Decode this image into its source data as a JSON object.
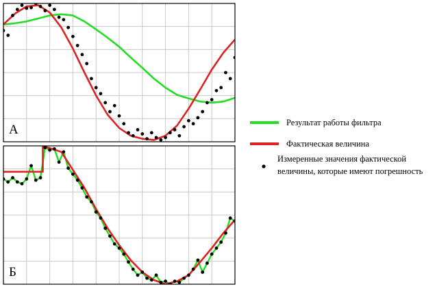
{
  "chart_data": [
    {
      "type": "line",
      "panel_label": "А",
      "grid": true,
      "xlim": [
        0,
        100
      ],
      "ylim": [
        -1.15,
        1.15
      ],
      "series": [
        {
          "name": "Результат работы фильтра",
          "color": "#22dd22",
          "x": [
            0,
            5,
            10,
            15,
            20,
            25,
            30,
            35,
            40,
            45,
            50,
            55,
            60,
            65,
            70,
            75,
            80,
            85,
            90,
            95,
            100
          ],
          "y": [
            0.8,
            0.82,
            0.85,
            0.9,
            0.95,
            0.97,
            0.95,
            0.85,
            0.72,
            0.58,
            0.43,
            0.25,
            0.08,
            -0.1,
            -0.25,
            -0.37,
            -0.43,
            -0.48,
            -0.5,
            -0.48,
            -0.42
          ]
        },
        {
          "name": "Фактическая величина",
          "color": "#dd2222",
          "x": [
            0,
            5,
            10,
            15,
            20,
            25,
            30,
            35,
            40,
            45,
            50,
            55,
            60,
            65,
            70,
            75,
            80,
            85,
            90,
            95,
            100
          ],
          "y": [
            0.8,
            0.98,
            1.1,
            1.12,
            1.0,
            0.75,
            0.4,
            0.0,
            -0.38,
            -0.7,
            -0.92,
            -1.05,
            -1.1,
            -1.12,
            -1.05,
            -0.88,
            -0.6,
            -0.28,
            0.05,
            0.33,
            0.55
          ]
        },
        {
          "name": "Измеренные значения фактической величины, которые имеют погрешность",
          "color": "#000000",
          "marker": "dot",
          "x": [
            0,
            2,
            4,
            6,
            8,
            10,
            12,
            14,
            16,
            18,
            20,
            22,
            24,
            26,
            28,
            30,
            32,
            34,
            36,
            38,
            40,
            42,
            44,
            46,
            48,
            50,
            52,
            54,
            56,
            58,
            60,
            62,
            64,
            66,
            68,
            70,
            72,
            74,
            76,
            78,
            80,
            82,
            84,
            86,
            88,
            90,
            92,
            94,
            96,
            98,
            100
          ],
          "y": [
            0.7,
            0.62,
            0.95,
            1.05,
            1.12,
            1.07,
            1.08,
            1.15,
            1.1,
            1.03,
            1.12,
            1.05,
            0.92,
            0.88,
            0.75,
            0.6,
            0.45,
            0.3,
            0.15,
            -0.1,
            -0.25,
            -0.35,
            -0.5,
            -0.65,
            -0.55,
            -0.72,
            -0.85,
            -1.0,
            -1.05,
            -0.95,
            -1.02,
            -1.1,
            -1.0,
            -1.08,
            -1.12,
            -1.08,
            -1.0,
            -0.95,
            -1.05,
            -0.9,
            -0.8,
            -0.85,
            -0.75,
            -0.65,
            -0.5,
            -0.45,
            -0.3,
            -0.25,
            0.0,
            -0.1,
            0.25
          ]
        }
      ]
    },
    {
      "type": "line",
      "panel_label": "Б",
      "grid": true,
      "xlim": [
        0,
        100
      ],
      "ylim": [
        -1.15,
        1.15
      ],
      "series": [
        {
          "name": "Результат работы фильтра",
          "color": "#22dd22",
          "x": [
            0,
            2,
            4,
            6,
            8,
            10,
            12,
            14,
            16,
            18,
            20,
            22,
            24,
            26,
            28,
            30,
            32,
            34,
            36,
            38,
            40,
            42,
            44,
            46,
            48,
            50,
            52,
            54,
            56,
            58,
            60,
            62,
            64,
            66,
            68,
            70,
            72,
            74,
            76,
            78,
            80,
            82,
            84,
            86,
            88,
            90,
            92,
            94,
            96,
            98,
            100
          ],
          "y": [
            0.6,
            0.55,
            0.62,
            0.55,
            0.52,
            0.6,
            0.82,
            0.58,
            0.62,
            1.12,
            1.08,
            1.1,
            0.88,
            1.05,
            0.78,
            0.68,
            0.58,
            0.45,
            0.3,
            0.22,
            0.05,
            -0.05,
            -0.22,
            -0.35,
            -0.48,
            -0.55,
            -0.65,
            -0.78,
            -0.9,
            -1.0,
            -0.95,
            -1.05,
            -1.08,
            -1.0,
            -1.12,
            -1.1,
            -1.15,
            -1.1,
            -1.12,
            -1.05,
            -1.0,
            -0.9,
            -0.75,
            -0.95,
            -0.8,
            -0.65,
            -0.55,
            -0.45,
            -0.3,
            -0.05,
            -0.1
          ]
        },
        {
          "name": "Фактическая величина",
          "color": "#dd2222",
          "x": [
            0,
            17,
            17,
            25,
            30,
            35,
            40,
            45,
            50,
            55,
            60,
            65,
            70,
            75,
            80,
            85,
            90,
            95,
            100
          ],
          "y": [
            0.72,
            0.72,
            1.15,
            1.05,
            0.75,
            0.45,
            0.1,
            -0.22,
            -0.5,
            -0.75,
            -0.95,
            -1.08,
            -1.15,
            -1.1,
            -1.0,
            -0.78,
            -0.55,
            -0.3,
            -0.08
          ]
        },
        {
          "name": "Измеренные значения фактической величины, которые имеют погрешность",
          "color": "#000000",
          "marker": "dot",
          "x": [
            0,
            2,
            4,
            6,
            8,
            10,
            12,
            14,
            16,
            18,
            20,
            22,
            24,
            26,
            28,
            30,
            32,
            34,
            36,
            38,
            40,
            42,
            44,
            46,
            48,
            50,
            52,
            54,
            56,
            58,
            60,
            62,
            64,
            66,
            68,
            70,
            72,
            74,
            76,
            78,
            80,
            82,
            84,
            86,
            88,
            90,
            92,
            94,
            96,
            98,
            100
          ],
          "y": [
            0.6,
            0.55,
            0.62,
            0.55,
            0.52,
            0.6,
            0.82,
            0.58,
            0.62,
            1.12,
            1.08,
            1.1,
            0.88,
            1.05,
            0.78,
            0.68,
            0.58,
            0.45,
            0.3,
            0.22,
            0.05,
            -0.05,
            -0.22,
            -0.35,
            -0.48,
            -0.55,
            -0.65,
            -0.78,
            -0.9,
            -1.0,
            -0.95,
            -1.05,
            -1.08,
            -1.0,
            -1.12,
            -1.1,
            -1.15,
            -1.1,
            -1.12,
            -1.05,
            -1.0,
            -0.9,
            -0.75,
            -0.95,
            -0.8,
            -0.65,
            -0.55,
            -0.45,
            -0.3,
            -0.05,
            -0.1
          ]
        }
      ]
    }
  ],
  "legend": {
    "items": [
      {
        "label": "Результат работы фильтра",
        "color": "#22dd22",
        "kind": "line"
      },
      {
        "label": "Фактическая величина",
        "color": "#dd2222",
        "kind": "line"
      },
      {
        "label_lines": [
          "Измеренные значения фактической",
          "величины, которые имеют погрешность"
        ],
        "color": "#000000",
        "kind": "dot"
      }
    ]
  }
}
